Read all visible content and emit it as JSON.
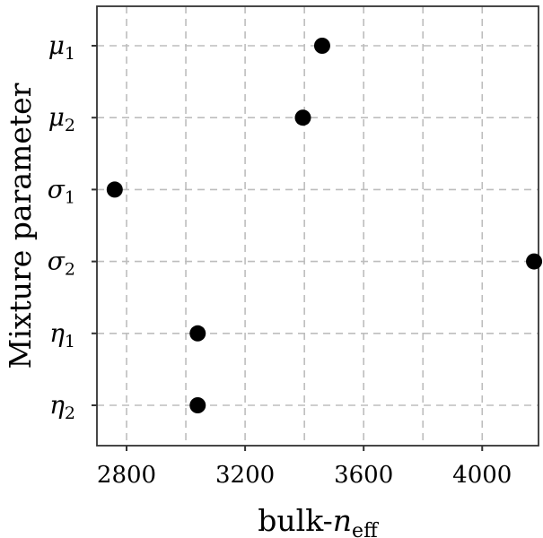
{
  "chart_data": {
    "type": "scatter",
    "xlabel": {
      "base": "bulk-",
      "var": "n",
      "sub": "eff"
    },
    "ylabel": "Mixture parameter",
    "xlim": [
      2700,
      4190
    ],
    "xticks": [
      2800,
      3200,
      3600,
      4000
    ],
    "grid": true,
    "point_color": "#000000",
    "categories": [
      {
        "sym": "μ",
        "sub": "1"
      },
      {
        "sym": "μ",
        "sub": "2"
      },
      {
        "sym": "σ",
        "sub": "1"
      },
      {
        "sym": "σ",
        "sub": "2"
      },
      {
        "sym": "η",
        "sub": "1"
      },
      {
        "sym": "η",
        "sub": "2"
      }
    ],
    "values": [
      3460,
      3395,
      2760,
      4175,
      3040,
      3040
    ]
  }
}
